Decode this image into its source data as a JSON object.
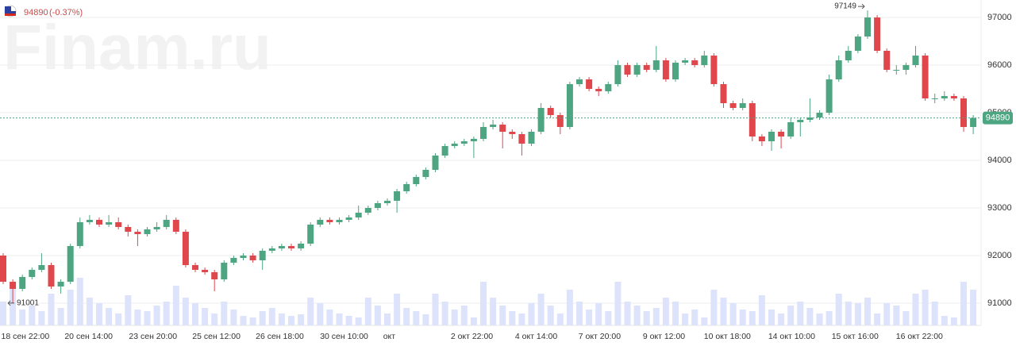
{
  "chart_data": {
    "type": "candlestick",
    "watermark": "Finam.ru",
    "change_label": "(-0.37%)",
    "up_color": "#4da582",
    "down_color": "#e0474c",
    "volume_color": "#dde3fb",
    "ylim": [
      90533,
      97367
    ],
    "yticks": [
      91000,
      92000,
      93000,
      94000,
      95000,
      96000,
      97000
    ],
    "grid": true,
    "xticks": [
      {
        "value": 2.3,
        "label": "18 сен 22:00"
      },
      {
        "value": 8.9,
        "label": "20 сен 14:00"
      },
      {
        "value": 15.6,
        "label": "23 сен 20:00"
      },
      {
        "value": 22.2,
        "label": "25 сен 12:00"
      },
      {
        "value": 28.8,
        "label": "26 сен 18:00"
      },
      {
        "value": 35.5,
        "label": "30 сен 10:00"
      },
      {
        "value": 40.2,
        "label": "окт"
      },
      {
        "value": 48.8,
        "label": "2 окт 22:00"
      },
      {
        "value": 55.5,
        "label": "4 окт 14:00"
      },
      {
        "value": 62.1,
        "label": "7 окт 20:00"
      },
      {
        "value": 68.8,
        "label": "9 окт 12:00"
      },
      {
        "value": 75.4,
        "label": "10 окт 18:00"
      },
      {
        "value": 82.1,
        "label": "14 окт 10:00"
      },
      {
        "value": 88.7,
        "label": "15 окт 16:00"
      },
      {
        "value": 95.4,
        "label": "16 окт 22:00"
      }
    ],
    "ohlc": [
      [
        92000,
        92050,
        91400,
        91450
      ],
      [
        91450,
        91500,
        91001,
        91300
      ],
      [
        91300,
        91600,
        91250,
        91550
      ],
      [
        91550,
        91750,
        91500,
        91700
      ],
      [
        91700,
        92050,
        91650,
        91800
      ],
      [
        91800,
        91850,
        91300,
        91350
      ],
      [
        91350,
        91500,
        91200,
        91450
      ],
      [
        91450,
        92250,
        91400,
        92200
      ],
      [
        92200,
        92800,
        92150,
        92700
      ],
      [
        92700,
        92850,
        92650,
        92750
      ],
      [
        92750,
        92800,
        92600,
        92650
      ],
      [
        92650,
        92850,
        92600,
        92700
      ],
      [
        92700,
        92800,
        92550,
        92600
      ],
      [
        92600,
        92650,
        92400,
        92500
      ],
      [
        92500,
        92550,
        92200,
        92450
      ],
      [
        92450,
        92600,
        92400,
        92550
      ],
      [
        92550,
        92700,
        92500,
        92600
      ],
      [
        92600,
        92850,
        92550,
        92750
      ],
      [
        92750,
        92800,
        92450,
        92500
      ],
      [
        92500,
        92550,
        91750,
        91800
      ],
      [
        91800,
        91850,
        91650,
        91700
      ],
      [
        91700,
        91750,
        91600,
        91650
      ],
      [
        91650,
        91700,
        91250,
        91500
      ],
      [
        91500,
        91900,
        91450,
        91850
      ],
      [
        91850,
        92000,
        91800,
        91950
      ],
      [
        91950,
        92050,
        91900,
        92000
      ],
      [
        92000,
        92050,
        91850,
        91900
      ],
      [
        91900,
        92150,
        91700,
        92100
      ],
      [
        92100,
        92200,
        92050,
        92150
      ],
      [
        92150,
        92250,
        92100,
        92200
      ],
      [
        92200,
        92250,
        92100,
        92150
      ],
      [
        92150,
        92300,
        92100,
        92250
      ],
      [
        92250,
        92700,
        92200,
        92650
      ],
      [
        92650,
        92800,
        92600,
        92750
      ],
      [
        92750,
        92800,
        92650,
        92700
      ],
      [
        92700,
        92800,
        92650,
        92750
      ],
      [
        92750,
        92850,
        92700,
        92800
      ],
      [
        92800,
        93050,
        92750,
        92900
      ],
      [
        92900,
        93050,
        92850,
        93000
      ],
      [
        93000,
        93150,
        92950,
        93100
      ],
      [
        93100,
        93200,
        93050,
        93150
      ],
      [
        93150,
        93400,
        92900,
        93350
      ],
      [
        93350,
        93550,
        93300,
        93500
      ],
      [
        93500,
        93700,
        93450,
        93650
      ],
      [
        93650,
        93850,
        93600,
        93800
      ],
      [
        93800,
        94150,
        93750,
        94100
      ],
      [
        94100,
        94350,
        94050,
        94300
      ],
      [
        94300,
        94400,
        94250,
        94350
      ],
      [
        94350,
        94450,
        94300,
        94400
      ],
      [
        94400,
        94500,
        94050,
        94450
      ],
      [
        94450,
        94800,
        94400,
        94700
      ],
      [
        94700,
        94850,
        94650,
        94750
      ],
      [
        94750,
        94800,
        94250,
        94600
      ],
      [
        94600,
        94650,
        94450,
        94550
      ],
      [
        94550,
        94600,
        94100,
        94350
      ],
      [
        94350,
        94650,
        94300,
        94600
      ],
      [
        94600,
        95200,
        94550,
        95100
      ],
      [
        95100,
        95150,
        94900,
        94950
      ],
      [
        94950,
        95000,
        94550,
        94700
      ],
      [
        94700,
        95650,
        94650,
        95600
      ],
      [
        95600,
        95750,
        95550,
        95700
      ],
      [
        95700,
        95750,
        95450,
        95500
      ],
      [
        95500,
        95550,
        95350,
        95450
      ],
      [
        95450,
        95650,
        95400,
        95600
      ],
      [
        95600,
        96100,
        95550,
        96000
      ],
      [
        96000,
        96050,
        95750,
        95800
      ],
      [
        95800,
        96050,
        95750,
        96000
      ],
      [
        96000,
        96050,
        95850,
        95900
      ],
      [
        95900,
        96400,
        95850,
        96100
      ],
      [
        96100,
        96150,
        95650,
        95700
      ],
      [
        95700,
        96100,
        95650,
        96050
      ],
      [
        96050,
        96150,
        96000,
        96100
      ],
      [
        96100,
        96150,
        95950,
        96000
      ],
      [
        96000,
        96300,
        95950,
        96200
      ],
      [
        96200,
        96250,
        95550,
        95600
      ],
      [
        95600,
        95650,
        95100,
        95200
      ],
      [
        95200,
        95250,
        95050,
        95100
      ],
      [
        95100,
        95300,
        95050,
        95200
      ],
      [
        95200,
        95250,
        94400,
        94500
      ],
      [
        94500,
        94550,
        94300,
        94400
      ],
      [
        94400,
        94650,
        94200,
        94600
      ],
      [
        94600,
        94650,
        94250,
        94500
      ],
      [
        94500,
        94900,
        94450,
        94800
      ],
      [
        94800,
        94900,
        94500,
        94850
      ],
      [
        94850,
        95300,
        94800,
        94900
      ],
      [
        94900,
        95050,
        94850,
        95000
      ],
      [
        95000,
        95800,
        94950,
        95700
      ],
      [
        95700,
        96200,
        95650,
        96100
      ],
      [
        96100,
        96400,
        96050,
        96300
      ],
      [
        96300,
        96650,
        96250,
        96600
      ],
      [
        96600,
        97149,
        96550,
        97000
      ],
      [
        97000,
        97050,
        96250,
        96300
      ],
      [
        96300,
        96350,
        95850,
        95900
      ],
      [
        95900,
        96000,
        95800,
        95900
      ],
      [
        95900,
        96050,
        95800,
        96000
      ],
      [
        96000,
        96400,
        95950,
        96200
      ],
      [
        96200,
        96250,
        95250,
        95300
      ],
      [
        95300,
        95400,
        95200,
        95300
      ],
      [
        95300,
        95450,
        95250,
        95350
      ],
      [
        95350,
        95400,
        95250,
        95300
      ],
      [
        95300,
        95350,
        94600,
        94700
      ],
      [
        94700,
        94950,
        94550,
        94890
      ]
    ],
    "volume": [
      30,
      55,
      20,
      25,
      18,
      40,
      22,
      45,
      60,
      35,
      28,
      22,
      15,
      38,
      20,
      18,
      25,
      30,
      50,
      35,
      28,
      22,
      15,
      30,
      20,
      12,
      10,
      18,
      22,
      15,
      12,
      14,
      35,
      28,
      20,
      15,
      12,
      10,
      35,
      25,
      15,
      40,
      22,
      18,
      14,
      40,
      30,
      20,
      25,
      10,
      55,
      35,
      25,
      18,
      15,
      28,
      40,
      25,
      15,
      45,
      30,
      20,
      28,
      18,
      55,
      30,
      25,
      18,
      22,
      35,
      30,
      15,
      20,
      10,
      45,
      35,
      28,
      20,
      18,
      38,
      20,
      15,
      25,
      30,
      22,
      15,
      18,
      40,
      30,
      28,
      35,
      15,
      28,
      25,
      18,
      40,
      45,
      30,
      12,
      10,
      55,
      45
    ]
  }
}
